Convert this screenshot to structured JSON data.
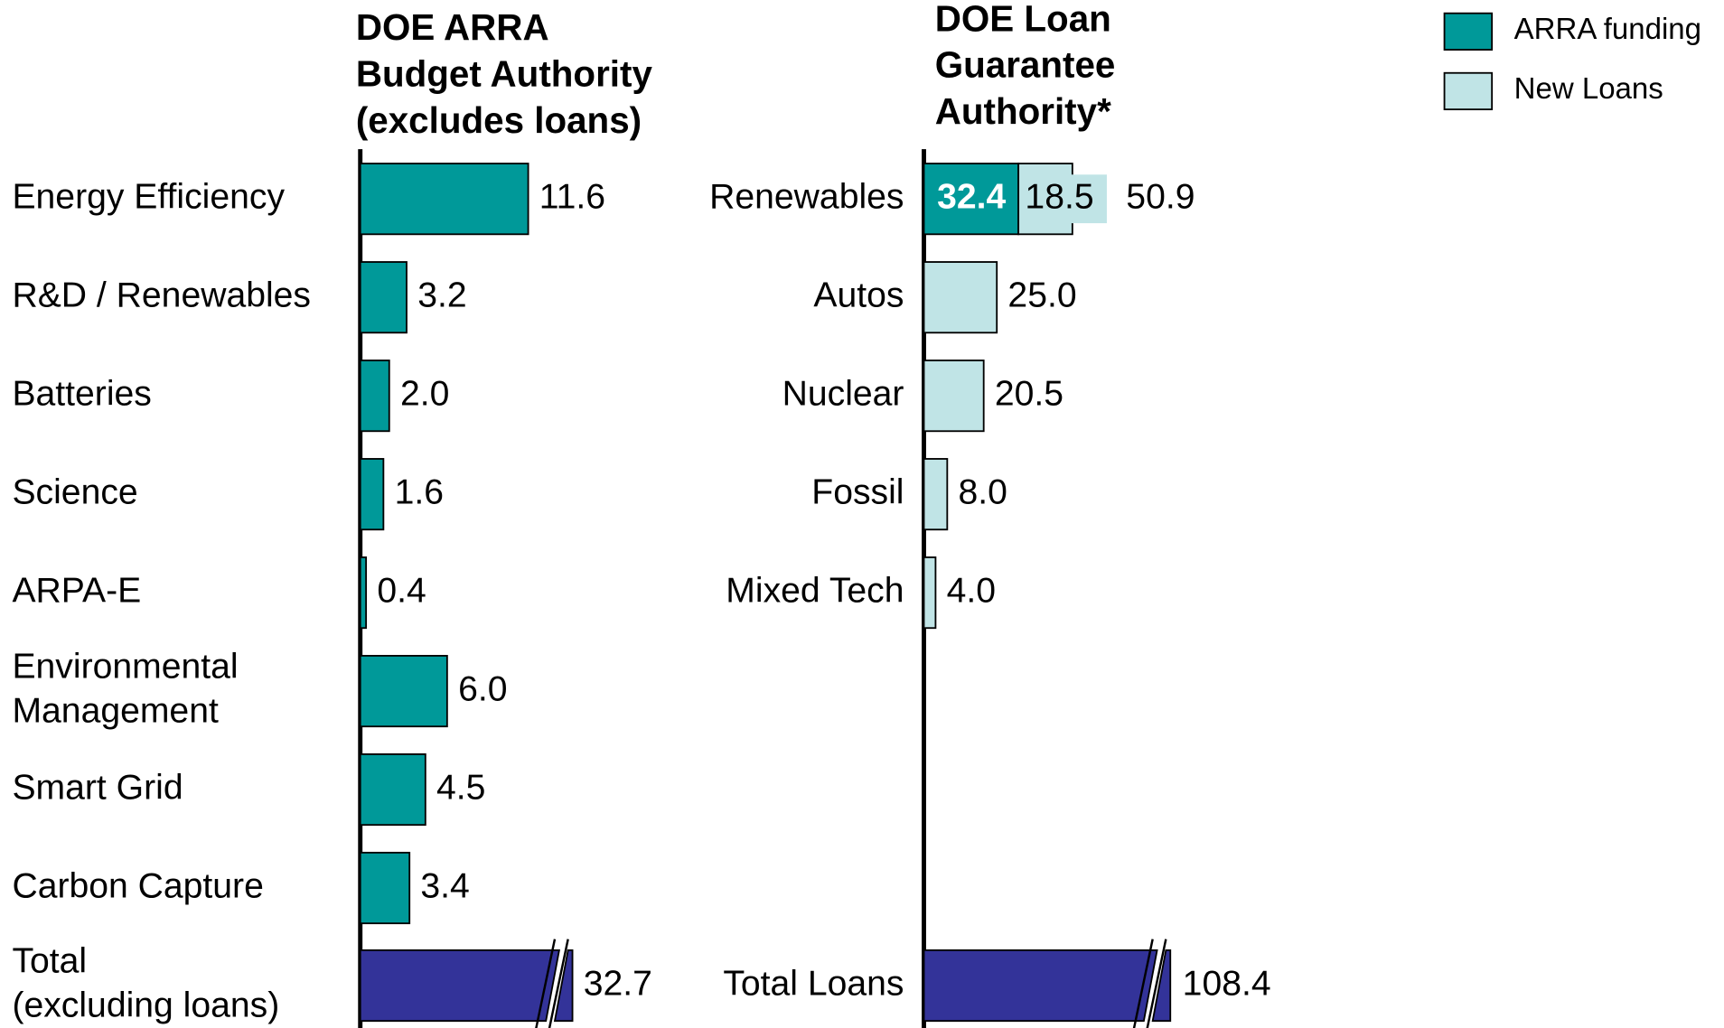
{
  "chart_data": [
    {
      "type": "hbar",
      "title": "DOE ARRA\nBudget Authority\n(excludes loans)",
      "categories": [
        "Energy Efficiency",
        "R&D / Renewables",
        "Batteries",
        "Science",
        "ARPA-E",
        "Environmental\nManagement",
        "Smart Grid",
        "Carbon Capture"
      ],
      "values": [
        11.6,
        3.2,
        2.0,
        1.6,
        0.4,
        6.0,
        4.5,
        3.4
      ],
      "value_labels": [
        "11.6",
        "3.2",
        "2.0",
        "1.6",
        "0.4",
        "6.0",
        "4.5",
        "3.4"
      ],
      "color": "#009999",
      "xlim": [
        0,
        20
      ],
      "total": {
        "category": "Total\n(excluding loans)",
        "value": 32.7,
        "value_label": "32.7",
        "color": "#333399",
        "broken": true
      }
    },
    {
      "type": "stacked_hbar",
      "title": "DOE Loan\nGuarantee\nAuthority*",
      "categories": [
        "Renewables",
        "Autos",
        "Nuclear",
        "Fossil",
        "Mixed Tech"
      ],
      "series": [
        {
          "name": "ARRA funding",
          "color": "#009999",
          "values": [
            32.4,
            null,
            null,
            null,
            null
          ]
        },
        {
          "name": "New Loans",
          "color": "#c0e4e6",
          "values": [
            18.5,
            25.0,
            20.5,
            8.0,
            4.0
          ],
          "value_labels": [
            "18.5",
            "25.0",
            "20.5",
            "8.0",
            "4.0"
          ]
        }
      ],
      "row_total": {
        "index": 0,
        "value": 50.9
      },
      "xlim": [
        0,
        100
      ],
      "legend": "top-right",
      "total": {
        "category": "Total Loans",
        "value": 108.4,
        "color": "#333399",
        "broken": true
      }
    }
  ]
}
